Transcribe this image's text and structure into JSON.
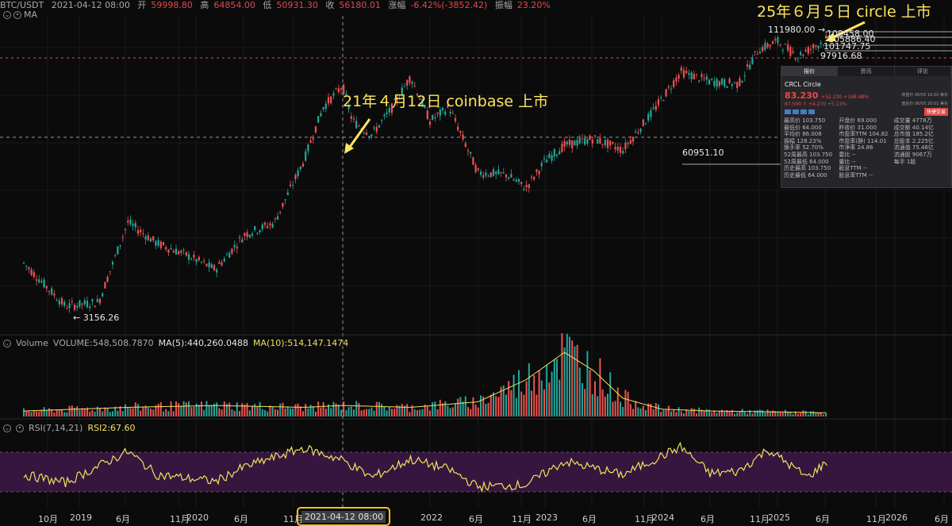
{
  "header": {
    "symbol": "BTC/USDT",
    "time": "2021-04-12 08:00",
    "open_label": "开",
    "open": "59998.80",
    "high_label": "高",
    "high": "64854.00",
    "low_label": "低",
    "low": "50931.30",
    "close_label": "收",
    "close": "56180.01",
    "change_label": "涨幅",
    "change": "-6.42%(-3852.42)",
    "amp_label": "振幅",
    "amp": "23.20%"
  },
  "ma_label": "MA",
  "volume_row": {
    "name": "Volume",
    "volume": "VOLUME:548,508.7870",
    "ma5": "MA(5):440,260.0488",
    "ma10": "MA(10):514,147.1474"
  },
  "rsi_row": {
    "params": "RSI(7,14,21)",
    "value": "RSI2:67.60"
  },
  "annotations": {
    "coinbase": "21年４月12日 coinbase 上市",
    "circle": "25年６月５日 circle 上市"
  },
  "price_labels": {
    "high": "111980.00 →",
    "h2": "109458.00",
    "h3": "105886.40",
    "h4": "101747.75",
    "h5": "97916.68",
    "mid": "60951.10",
    "low": "← 3156.26"
  },
  "crosshair_date": "2021-04-12 08:00",
  "x_axis": [
    "10月",
    "2019",
    "6月",
    "11月",
    "2020",
    "6月",
    "11月",
    "2022",
    "6月",
    "11月",
    "2023",
    "6月",
    "11月",
    "2024",
    "6月",
    "11月",
    "2025",
    "6月",
    "11月",
    "2026",
    "6月"
  ],
  "quote_panel": {
    "tabs": [
      "报价",
      "资讯",
      "评论"
    ],
    "ticker": "CRCL  Circle",
    "price": "83.230",
    "change": "+52.230 +168.48%",
    "note_right": "收盘价 06/05 16:00 美东",
    "after_price": "87.500 ↑ +4.270 +5.13%",
    "after_note": "盘后价 06/05 20:01 美东",
    "button": "快捷交易",
    "rows": [
      [
        "最高价 103.750",
        "开盘价 69.000",
        "成交量 4778万"
      ],
      [
        "最低价 64.000",
        "昨收价 31.000",
        "成交额 40.14亿"
      ],
      [
        "平均价 86.008",
        "市盈率TTM 104.82",
        "总市值 185.2亿"
      ],
      [
        "振幅 128.23%",
        "市盈率(静) 114.01",
        "总股本 2.225亿"
      ],
      [
        "换手率 52.70%",
        "市净率 24.86",
        "流通值 75.46亿"
      ],
      [
        "52周最高 103.750",
        "委比 --",
        "流通股 9067万"
      ],
      [
        "52周最低 64.000",
        "量比 --",
        "每手 1股"
      ],
      [
        "历史最高 103.750",
        "股息TTM --",
        ""
      ],
      [
        "历史最低 64.000",
        "股息率TTM --",
        ""
      ]
    ]
  },
  "colors": {
    "up": "#26a69a",
    "down": "#ef5350",
    "annotation": "#ffe55c",
    "rsi_band": "#3a1747",
    "rsi_line": "#f2e35b",
    "ma10": "#f0e060"
  },
  "chart_data": {
    "type": "candlestick",
    "symbol": "BTC/USDT",
    "xrange": [
      "2018-09",
      "2026-07"
    ],
    "ylabel": "",
    "price_series": {
      "name": "BTC/USDT",
      "x": [
        "2018-09",
        "2018-12",
        "2019-03",
        "2019-06",
        "2019-09",
        "2019-12",
        "2020-03",
        "2020-06",
        "2020-09",
        "2020-12",
        "2021-02",
        "2021-04",
        "2021-05",
        "2021-07",
        "2021-09",
        "2021-11",
        "2022-01",
        "2022-03",
        "2022-06",
        "2022-09",
        "2022-11",
        "2023-01",
        "2023-03",
        "2023-06",
        "2023-09",
        "2023-12",
        "2024-03",
        "2024-06",
        "2024-09",
        "2024-11",
        "2025-01",
        "2025-03",
        "2025-06"
      ],
      "y": [
        6500,
        3800,
        4000,
        10800,
        8300,
        7200,
        6000,
        9300,
        10700,
        23000,
        45000,
        59000,
        38000,
        32000,
        44000,
        66000,
        38000,
        45000,
        20000,
        19500,
        16500,
        23000,
        28000,
        30500,
        26500,
        42000,
        70000,
        62000,
        60000,
        92000,
        102000,
        85000,
        105000
      ]
    },
    "volume_series": {
      "name": "VOLUME",
      "x": [
        "2018-09",
        "2019-06",
        "2020-03",
        "2020-12",
        "2021-04",
        "2021-11",
        "2022-06",
        "2022-11",
        "2023-03",
        "2023-06",
        "2023-09",
        "2024-01",
        "2024-06",
        "2025-01",
        "2025-06"
      ],
      "y": [
        0.3,
        0.5,
        0.6,
        0.5,
        0.6,
        0.5,
        0.8,
        2.0,
        3.5,
        2.5,
        1.0,
        0.4,
        0.3,
        0.25,
        0.2
      ]
    },
    "rsi_series": {
      "name": "RSI2",
      "x": [
        "2018-09",
        "2018-12",
        "2019-06",
        "2019-09",
        "2020-03",
        "2020-06",
        "2020-12",
        "2021-04",
        "2021-07",
        "2021-11",
        "2022-03",
        "2022-06",
        "2022-11",
        "2023-03",
        "2023-06",
        "2023-09",
        "2024-03",
        "2024-06",
        "2024-09",
        "2024-12",
        "2025-04",
        "2025-06"
      ],
      "y": [
        40,
        28,
        75,
        40,
        30,
        52,
        80,
        62,
        36,
        63,
        48,
        22,
        25,
        60,
        50,
        40,
        82,
        42,
        45,
        78,
        36,
        60
      ]
    },
    "rsi_band": [
      30,
      70
    ]
  }
}
